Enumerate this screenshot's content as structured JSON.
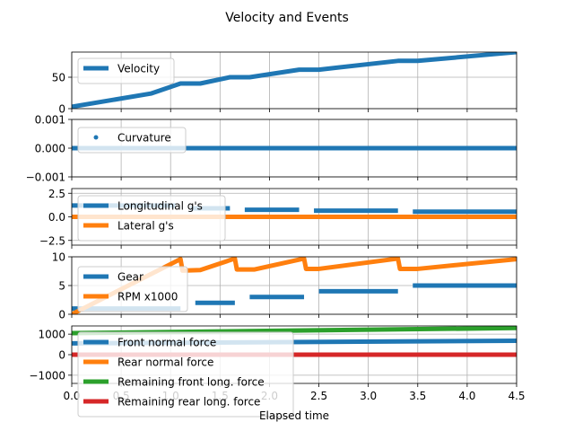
{
  "figure": {
    "title": "Velocity and Events",
    "xlabel": "Elapsed time"
  },
  "colors": {
    "blue": "#1f77b4",
    "orange": "#ff7f0e",
    "green": "#2ca02c",
    "red": "#d62728"
  },
  "chart_data": [
    {
      "type": "line",
      "xlim": [
        0.0,
        4.5
      ],
      "ylim": [
        0,
        90
      ],
      "yticks": [
        "0",
        "50"
      ],
      "grid": true,
      "legend": "upper-left",
      "series": [
        {
          "name": "Velocity",
          "color": "#1f77b4",
          "x": [
            0.0,
            0.8,
            1.1,
            1.3,
            1.6,
            1.8,
            2.3,
            2.5,
            3.3,
            3.5,
            4.5
          ],
          "y": [
            3,
            24,
            40,
            40,
            50,
            50,
            62,
            62,
            76,
            76,
            90
          ]
        }
      ]
    },
    {
      "type": "scatter",
      "xlim": [
        0.0,
        4.5
      ],
      "ylim": [
        -0.001,
        0.001
      ],
      "yticks": [
        "−0.001",
        "0.000",
        "0.001"
      ],
      "grid": true,
      "legend": "upper-left",
      "series": [
        {
          "name": "Curvature",
          "color": "#1f77b4",
          "x": [
            0.0,
            0.25,
            0.5,
            0.75,
            1.0,
            1.25,
            1.5,
            1.75,
            2.0,
            2.25,
            2.5,
            2.75,
            3.0,
            3.25,
            3.5,
            3.75,
            4.0,
            4.25,
            4.5
          ],
          "y": [
            0,
            0,
            0,
            0,
            0,
            0,
            0,
            0,
            0,
            0,
            0,
            0,
            0,
            0,
            0,
            0,
            0,
            0,
            0
          ]
        }
      ]
    },
    {
      "type": "line",
      "xlim": [
        0.0,
        4.5
      ],
      "ylim": [
        -3,
        3
      ],
      "yticks": [
        "−2.5",
        "0.0",
        "2.5"
      ],
      "grid": true,
      "legend": "upper-left",
      "series": [
        {
          "name": "Longitudinal g's",
          "color": "#1f77b4",
          "segments": [
            [
              [
                0.0,
                1.2
              ],
              [
                1.05,
                1.2
              ]
            ],
            [
              [
                1.2,
                0.9
              ],
              [
                1.6,
                0.9
              ]
            ],
            [
              [
                1.75,
                0.75
              ],
              [
                2.3,
                0.75
              ]
            ],
            [
              [
                2.45,
                0.65
              ],
              [
                3.3,
                0.65
              ]
            ],
            [
              [
                3.45,
                0.55
              ],
              [
                4.5,
                0.55
              ]
            ]
          ]
        },
        {
          "name": "Lateral g's",
          "color": "#ff7f0e",
          "x": [
            0.0,
            4.5
          ],
          "y": [
            0,
            0
          ]
        }
      ]
    },
    {
      "type": "line",
      "xlim": [
        0.0,
        4.5
      ],
      "ylim": [
        0,
        10
      ],
      "yticks": [
        "0",
        "5",
        "10"
      ],
      "grid": true,
      "legend": "lower-left",
      "series": [
        {
          "name": "Gear",
          "color": "#1f77b4",
          "segments": [
            [
              [
                0.0,
                1
              ],
              [
                1.1,
                1
              ]
            ],
            [
              [
                1.25,
                2
              ],
              [
                1.65,
                2
              ]
            ],
            [
              [
                1.8,
                3
              ],
              [
                2.35,
                3
              ]
            ],
            [
              [
                2.5,
                4
              ],
              [
                3.3,
                4
              ]
            ],
            [
              [
                3.45,
                5
              ],
              [
                4.5,
                5
              ]
            ]
          ]
        },
        {
          "name": "RPM x1000",
          "color": "#ff7f0e",
          "x": [
            0.0,
            1.1,
            1.12,
            1.3,
            1.65,
            1.67,
            1.85,
            2.35,
            2.37,
            2.5,
            3.3,
            3.32,
            3.5,
            4.5
          ],
          "y": [
            0,
            9.6,
            7.6,
            7.7,
            9.7,
            7.8,
            7.8,
            9.7,
            7.9,
            7.9,
            9.7,
            7.9,
            7.9,
            9.6
          ]
        }
      ]
    },
    {
      "type": "line",
      "xlim": [
        0.0,
        4.5
      ],
      "ylim": [
        -1400,
        1400
      ],
      "yticks": [
        "−1000",
        "0",
        "1000"
      ],
      "grid": true,
      "legend": "lower-left",
      "xticks": [
        "0.0",
        "0.5",
        "1.0",
        "1.5",
        "2.0",
        "2.5",
        "3.0",
        "3.5",
        "4.0",
        "4.5"
      ],
      "series": [
        {
          "name": "Front normal force",
          "color": "#1f77b4",
          "x": [
            0.0,
            4.5
          ],
          "y": [
            550,
            680
          ]
        },
        {
          "name": "Rear normal force",
          "color": "#ff7f0e",
          "x": [
            0.0,
            4.5
          ],
          "y": [
            0,
            0
          ]
        },
        {
          "name": "Remaining front long. force",
          "color": "#2ca02c",
          "x": [
            0.0,
            4.5
          ],
          "y": [
            1050,
            1300
          ]
        },
        {
          "name": "Remaining rear long. force",
          "color": "#d62728",
          "x": [
            0.0,
            4.5
          ],
          "y": [
            0,
            0
          ]
        }
      ]
    }
  ]
}
